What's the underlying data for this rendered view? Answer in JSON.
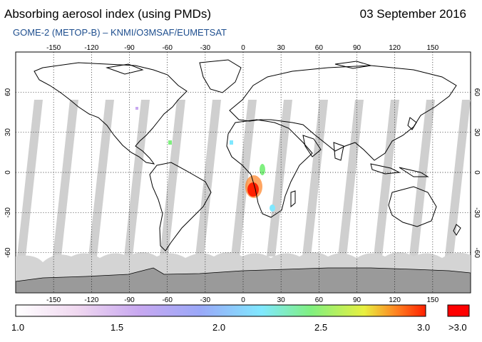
{
  "header": {
    "title": "Absorbing aerosol index (using PMDs)",
    "date": "03 September 2016",
    "subtitle": "GOME-2 (METOP-B)  –  KNMI/O3MSAF/EUMETSAT"
  },
  "map": {
    "lon_ticks": [
      "-150",
      "-120",
      "-90",
      "-60",
      "-30",
      "0",
      "30",
      "60",
      "90",
      "120",
      "150"
    ],
    "lat_ticks_left": [
      "60",
      "30",
      "0",
      "-30",
      "-60"
    ],
    "lat_ticks_right": [
      "60",
      "30",
      "0",
      "-30",
      "-60"
    ],
    "colors": {
      "land_mask": "#a8a8a8",
      "swath_gap": "#cfcfcf",
      "antarctica": "#9a9a9a",
      "coast": "#000000",
      "grid": "#000000"
    }
  },
  "colorbar": {
    "labels": [
      "1.0",
      "1.5",
      "2.0",
      "2.5",
      "3.0"
    ],
    "overflow_label": ">3.0",
    "overflow_color": "#ff0000",
    "gradient": [
      "#ffffff",
      "#f0d8f0",
      "#c8a8f0",
      "#9aa8f8",
      "#80e8ff",
      "#80f080",
      "#e8f040",
      "#ff8020",
      "#ff2000"
    ]
  }
}
